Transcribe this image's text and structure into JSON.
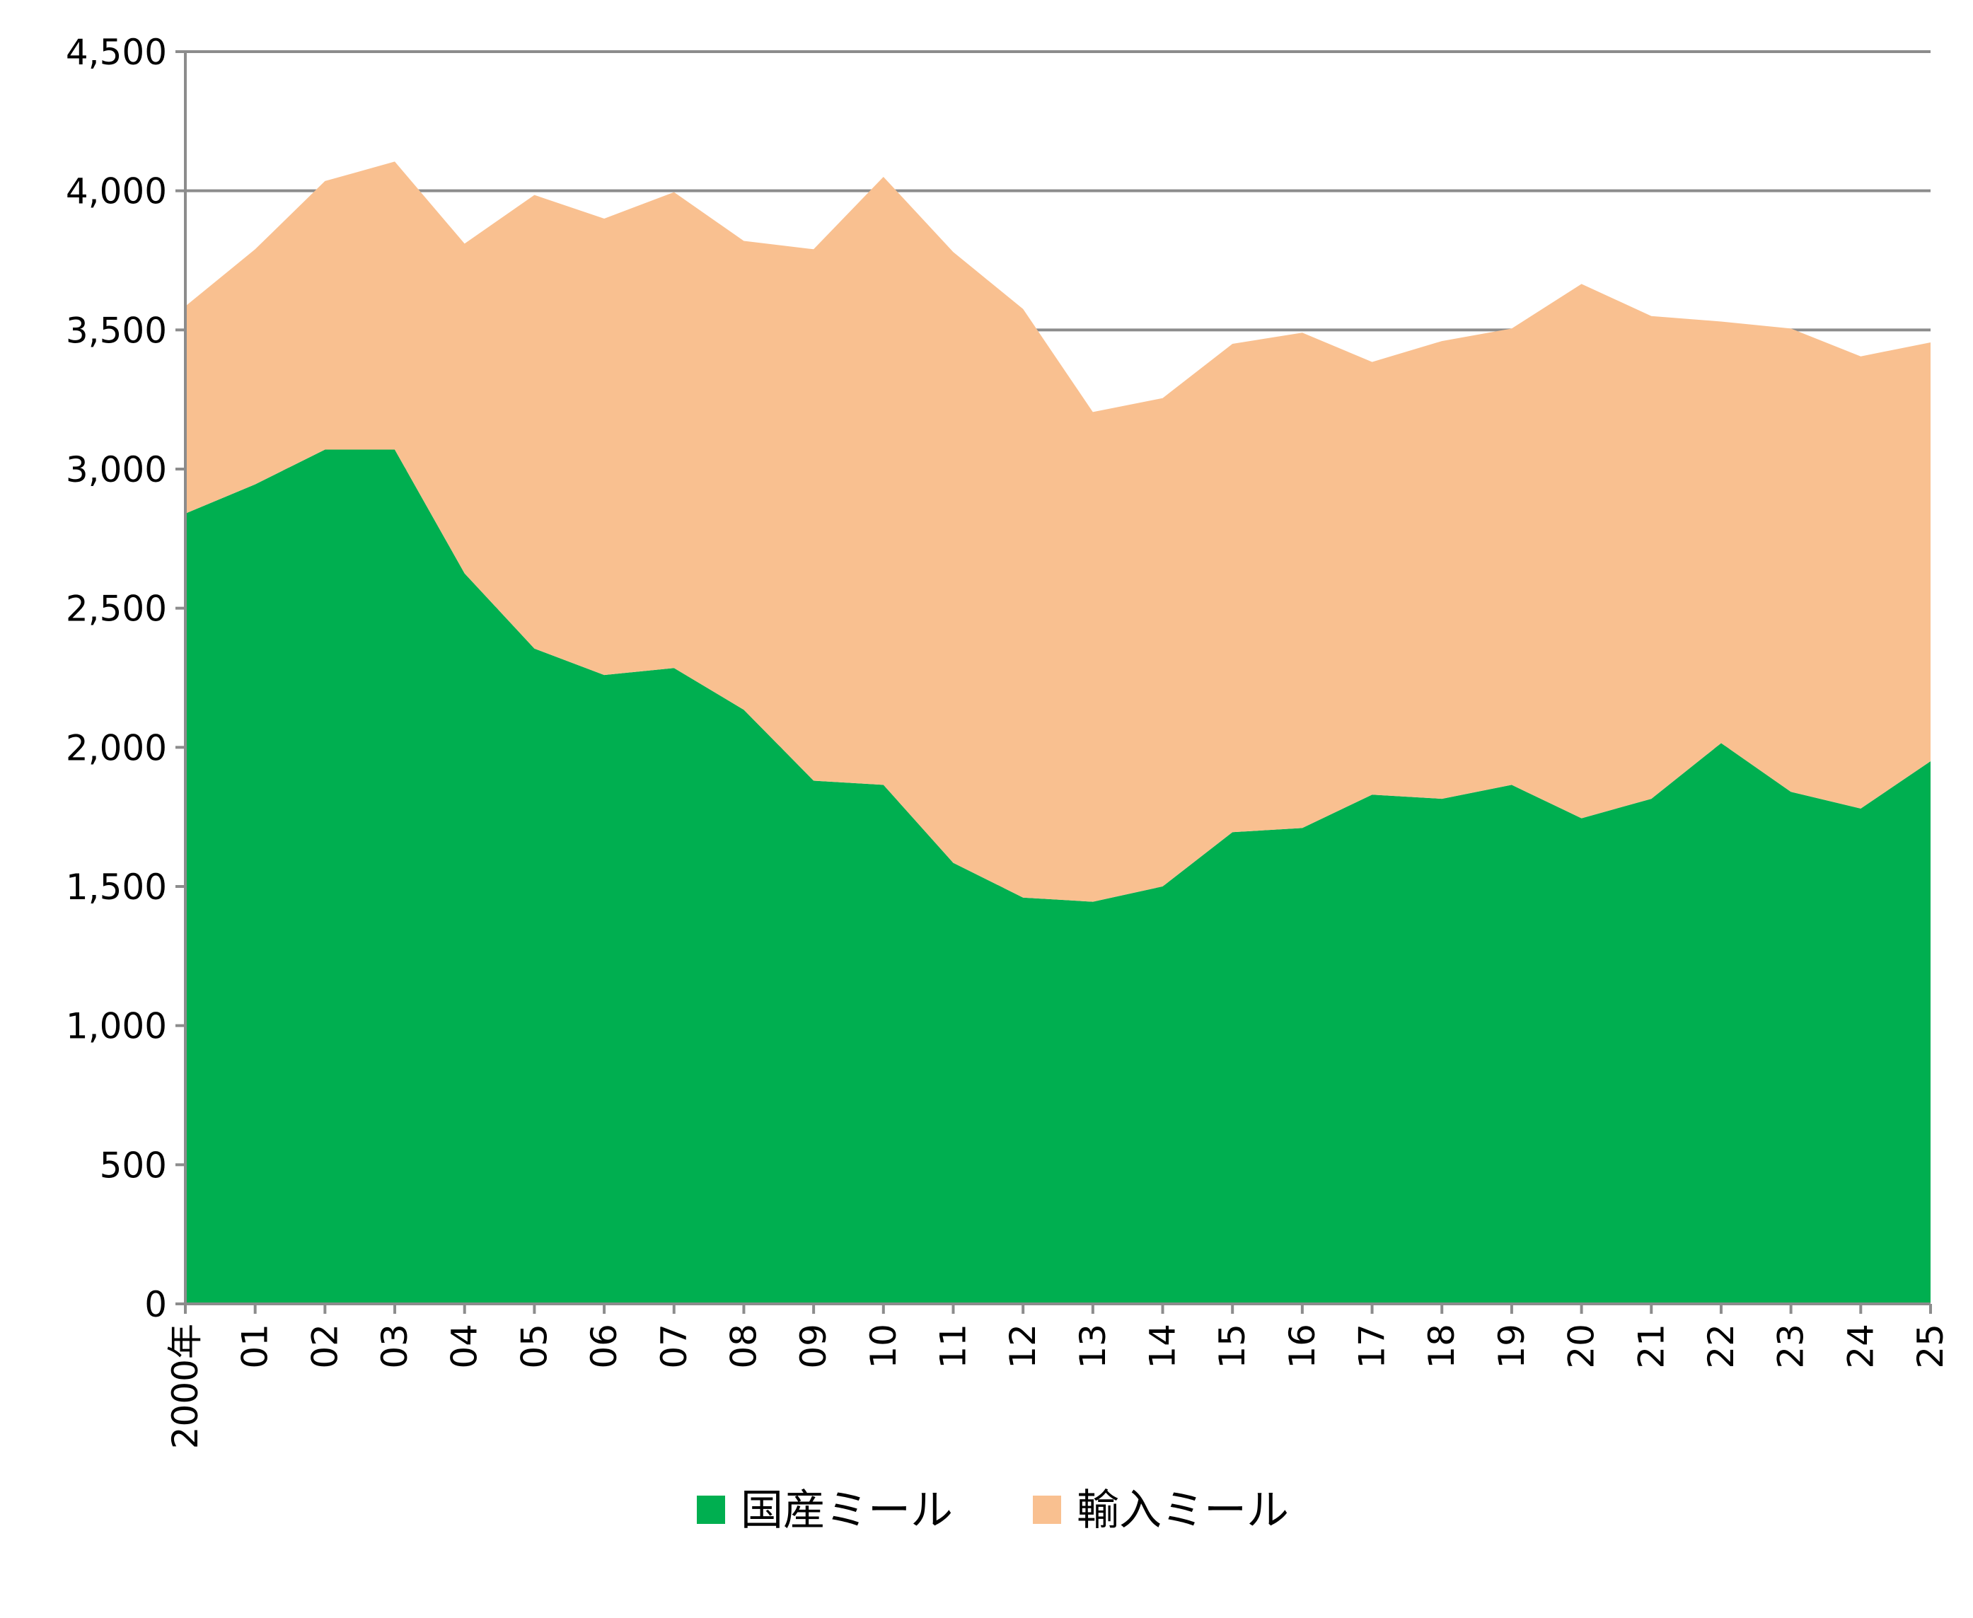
{
  "chart_data": {
    "type": "area",
    "stacked": true,
    "title": "",
    "xlabel": "",
    "ylabel": "",
    "ylim": [
      0,
      4500
    ],
    "yticks": [
      0,
      500,
      1000,
      1500,
      2000,
      2500,
      3000,
      3500,
      4000,
      4500
    ],
    "ytick_labels": [
      "0",
      "500",
      "1,000",
      "1,500",
      "2,000",
      "2,500",
      "3,000",
      "3,500",
      "4,000",
      "4,500"
    ],
    "grid": "horizontal",
    "categories": [
      "2000年",
      "01",
      "02",
      "03",
      "04",
      "05",
      "06",
      "07",
      "08",
      "09",
      "10",
      "11",
      "12",
      "13",
      "14",
      "15",
      "16",
      "17",
      "18",
      "19",
      "20",
      "21",
      "22",
      "23",
      "24",
      "25"
    ],
    "series": [
      {
        "name": "国産ミール",
        "color": "#00AF50",
        "values": [
          2840,
          2945,
          3070,
          3070,
          2625,
          2355,
          2260,
          2285,
          2135,
          1880,
          1865,
          1585,
          1460,
          1445,
          1500,
          1695,
          1710,
          1830,
          1815,
          1865,
          1745,
          1815,
          2015,
          1840,
          1780,
          1950
        ]
      },
      {
        "name": "輸入ミール",
        "color": "#F9C090",
        "values": [
          745,
          845,
          965,
          1035,
          1185,
          1630,
          1640,
          1710,
          1685,
          1910,
          2185,
          2195,
          2115,
          1760,
          1755,
          1755,
          1780,
          1555,
          1645,
          1640,
          1920,
          1735,
          1515,
          1665,
          1625,
          1505
        ]
      }
    ],
    "legend_position": "bottom-center"
  }
}
